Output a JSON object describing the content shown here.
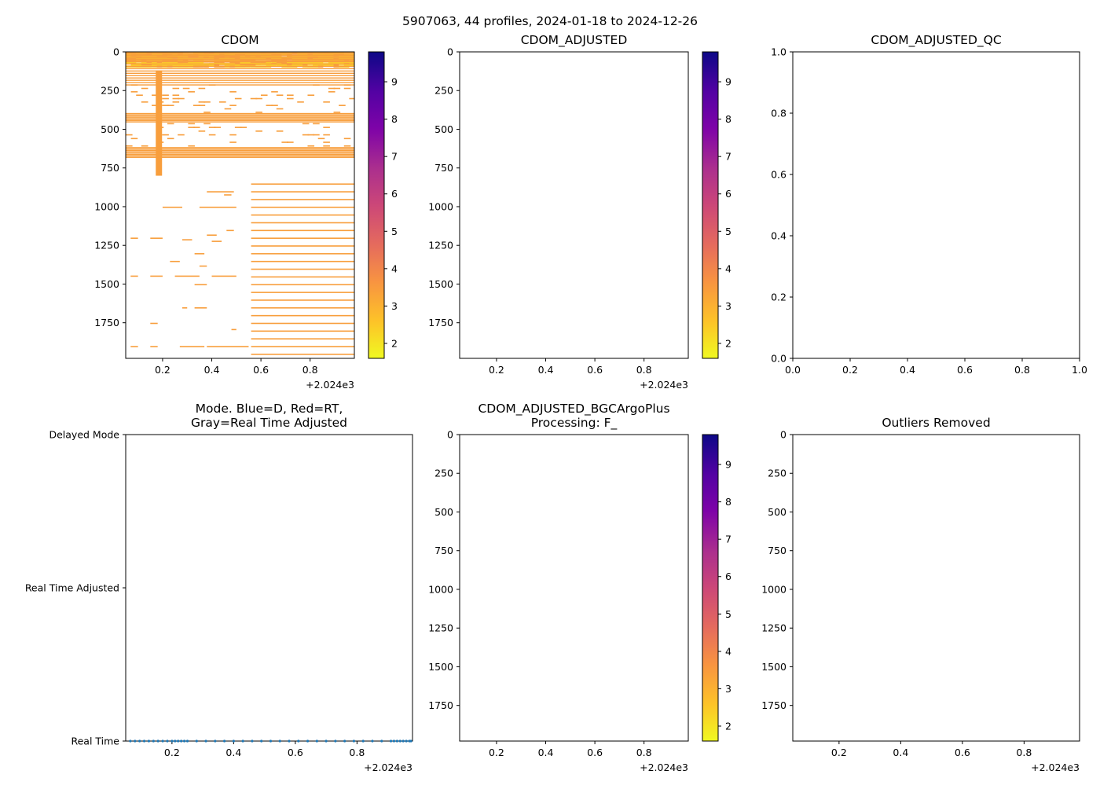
{
  "suptitle": "5907063, 44 profiles, 2024-01-18 to 2024-12-26",
  "colors": {
    "orange": "#f89e3c",
    "yellow": "#fbd227",
    "axis": "#000000",
    "mode_dots": "#1f77b4"
  },
  "colorbar": {
    "colormap": "plasma_r",
    "vmin": 1.6,
    "vmax": 9.8,
    "ticks": [
      "2",
      "3",
      "4",
      "5",
      "6",
      "7",
      "8",
      "9"
    ]
  },
  "chart_data": [
    {
      "id": "cdom",
      "type": "heatmap",
      "title": "CDOM",
      "xlim": [
        0.05,
        0.98
      ],
      "ylim": [
        1980,
        0
      ],
      "xticks": [
        "0.2",
        "0.4",
        "0.6",
        "0.8"
      ],
      "xoffset": "+2.024e3",
      "yticks": [
        "0",
        "250",
        "500",
        "750",
        "1000",
        "1250",
        "1500",
        "1750"
      ],
      "colorbar": true,
      "value_note": "values mostly ~2-3 near surface, ~3.6 below",
      "bands": [
        {
          "y0": 0,
          "y1": 60,
          "value": 2.7
        },
        {
          "y0": 60,
          "y1": 210,
          "value": 3.3
        },
        {
          "y0": 395,
          "y1": 455,
          "value": 3.6
        },
        {
          "y0": 615,
          "y1": 680,
          "value": 3.6
        }
      ],
      "columns": [
        {
          "x": 0.185,
          "y0": 120,
          "y1": 800,
          "value": 3.6
        }
      ],
      "deep_series_x_range": [
        0.56,
        0.98
      ],
      "deep_series_depth_range": [
        850,
        1960
      ]
    },
    {
      "id": "cdom_adjusted",
      "type": "heatmap",
      "title": "CDOM_ADJUSTED",
      "xlim": [
        0.05,
        0.98
      ],
      "ylim": [
        1980,
        0
      ],
      "xticks": [
        "0.2",
        "0.4",
        "0.6",
        "0.8"
      ],
      "xoffset": "+2.024e3",
      "yticks": [
        "0",
        "250",
        "500",
        "750",
        "1000",
        "1250",
        "1500",
        "1750"
      ],
      "colorbar": true,
      "values": []
    },
    {
      "id": "cdom_adjusted_qc",
      "type": "scatter",
      "title": "CDOM_ADJUSTED_QC",
      "xlim": [
        0,
        1
      ],
      "ylim": [
        0,
        1
      ],
      "xticks": [
        "0.0",
        "0.2",
        "0.4",
        "0.6",
        "0.8",
        "1.0"
      ],
      "yticks": [
        "0.0",
        "0.2",
        "0.4",
        "0.6",
        "0.8",
        "1.0"
      ],
      "values": []
    },
    {
      "id": "mode",
      "type": "scatter",
      "title_lines": [
        "Mode. Blue=D, Red=RT,",
        "Gray=Real Time Adjusted"
      ],
      "xlim": [
        0.05,
        0.98
      ],
      "xticks": [
        "0.2",
        "0.4",
        "0.6",
        "0.8"
      ],
      "xoffset": "+2.024e3",
      "categories": [
        "Delayed Mode",
        "Real Time Adjusted",
        "Real Time"
      ],
      "points_category": "Real Time",
      "x": [
        0.065,
        0.08,
        0.095,
        0.11,
        0.125,
        0.14,
        0.155,
        0.17,
        0.185,
        0.2,
        0.21,
        0.22,
        0.23,
        0.24,
        0.25,
        0.28,
        0.31,
        0.34,
        0.37,
        0.4,
        0.43,
        0.46,
        0.49,
        0.52,
        0.55,
        0.58,
        0.61,
        0.64,
        0.67,
        0.7,
        0.73,
        0.76,
        0.79,
        0.82,
        0.85,
        0.88,
        0.91,
        0.92,
        0.93,
        0.94,
        0.95,
        0.96,
        0.97,
        0.975
      ]
    },
    {
      "id": "bgcargoplus",
      "type": "heatmap",
      "title_lines": [
        "CDOM_ADJUSTED_BGCArgoPlus",
        "Processing: F_"
      ],
      "xlim": [
        0.05,
        0.98
      ],
      "ylim": [
        1980,
        0
      ],
      "xticks": [
        "0.2",
        "0.4",
        "0.6",
        "0.8"
      ],
      "xoffset": "+2.024e3",
      "yticks": [
        "0",
        "250",
        "500",
        "750",
        "1000",
        "1250",
        "1500",
        "1750"
      ],
      "colorbar": true,
      "values": []
    },
    {
      "id": "outliers",
      "type": "scatter",
      "title": "Outliers Removed",
      "xlim": [
        0.05,
        0.98
      ],
      "ylim": [
        1980,
        0
      ],
      "xticks": [
        "0.2",
        "0.4",
        "0.6",
        "0.8"
      ],
      "xoffset": "+2.024e3",
      "yticks": [
        "0",
        "250",
        "500",
        "750",
        "1000",
        "1250",
        "1500",
        "1750"
      ],
      "values": []
    }
  ]
}
